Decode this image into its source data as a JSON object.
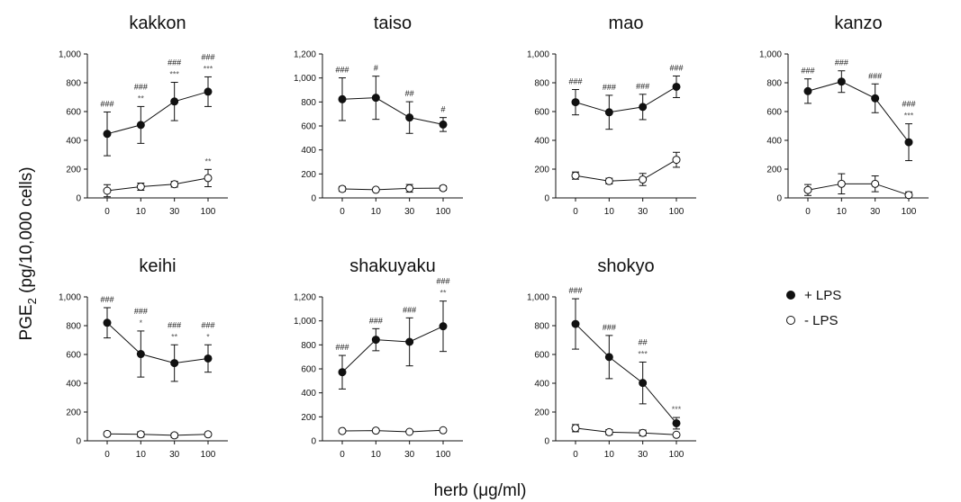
{
  "figure": {
    "ylabel_main": "PGE",
    "ylabel_sub": "2",
    "ylabel_tail": " (pg/10,000 cells)",
    "xlabel": "herb (μg/ml)",
    "legend": {
      "plus": "+ LPS",
      "minus": "- LPS"
    }
  },
  "chart_data": [
    {
      "type": "line",
      "title": "kakkon",
      "categories": [
        "0",
        "10",
        "30",
        "100"
      ],
      "ylim": [
        0,
        1000
      ],
      "yticks": [
        "0",
        "200",
        "400",
        "600",
        "800",
        "1,000"
      ],
      "series": [
        {
          "name": "+ LPS",
          "values": [
            445,
            507,
            670,
            738
          ],
          "errors": [
            152,
            128,
            133,
            103
          ]
        },
        {
          "name": "- LPS",
          "values": [
            50,
            78,
            95,
            138
          ],
          "errors": [
            42,
            25,
            20,
            60
          ]
        }
      ],
      "annotations": [
        {
          "index": 0,
          "lines": [
            {
              "text": "###",
              "color": "#111111"
            }
          ]
        },
        {
          "index": 1,
          "lines": [
            {
              "text": "###",
              "color": "#111111"
            },
            {
              "text": "**",
              "color": "#555555"
            }
          ]
        },
        {
          "index": 2,
          "lines": [
            {
              "text": "###",
              "color": "#111111"
            },
            {
              "text": "***",
              "color": "#555555"
            }
          ]
        },
        {
          "index": 3,
          "lines": [
            {
              "text": "###",
              "color": "#111111"
            },
            {
              "text": "***",
              "color": "#555555"
            }
          ]
        },
        {
          "index": 3,
          "series": 1,
          "lines": [
            {
              "text": "**",
              "color": "#555555"
            }
          ]
        }
      ]
    },
    {
      "type": "line",
      "title": "taiso",
      "categories": [
        "0",
        "10",
        "30",
        "100"
      ],
      "ylim": [
        0,
        1200
      ],
      "yticks": [
        "0",
        "200",
        "400",
        "600",
        "800",
        "1,000",
        "1,200"
      ],
      "series": [
        {
          "name": "+ LPS",
          "values": [
            823,
            835,
            670,
            612
          ],
          "errors": [
            178,
            180,
            132,
            58
          ]
        },
        {
          "name": "- LPS",
          "values": [
            75,
            68,
            80,
            82
          ],
          "errors": [
            20,
            8,
            32,
            18
          ]
        }
      ],
      "annotations": [
        {
          "index": 0,
          "lines": [
            {
              "text": "###",
              "color": "#111111"
            }
          ]
        },
        {
          "index": 1,
          "lines": [
            {
              "text": "#",
              "color": "#111111"
            }
          ]
        },
        {
          "index": 2,
          "lines": [
            {
              "text": "##",
              "color": "#111111"
            }
          ]
        },
        {
          "index": 3,
          "lines": [
            {
              "text": "#",
              "color": "#111111"
            }
          ]
        }
      ]
    },
    {
      "type": "line",
      "title": "mao",
      "categories": [
        "0",
        "10",
        "30",
        "100"
      ],
      "ylim": [
        0,
        1000
      ],
      "yticks": [
        "0",
        "200",
        "400",
        "600",
        "800",
        "1,000"
      ],
      "series": [
        {
          "name": "+ LPS",
          "values": [
            665,
            595,
            632,
            772
          ],
          "errors": [
            88,
            118,
            88,
            75
          ]
        },
        {
          "name": "- LPS",
          "values": [
            155,
            117,
            128,
            265
          ],
          "errors": [
            25,
            20,
            42,
            52
          ]
        }
      ],
      "annotations": [
        {
          "index": 0,
          "lines": [
            {
              "text": "###",
              "color": "#111111"
            }
          ]
        },
        {
          "index": 1,
          "lines": [
            {
              "text": "###",
              "color": "#111111"
            }
          ]
        },
        {
          "index": 2,
          "lines": [
            {
              "text": "###",
              "color": "#111111"
            }
          ]
        },
        {
          "index": 3,
          "lines": [
            {
              "text": "###",
              "color": "#111111"
            }
          ]
        }
      ]
    },
    {
      "type": "line",
      "title": "kanzo",
      "categories": [
        "0",
        "10",
        "30",
        "100"
      ],
      "ylim": [
        0,
        1000
      ],
      "yticks": [
        "0",
        "200",
        "400",
        "600",
        "800",
        "1,000"
      ],
      "series": [
        {
          "name": "+ LPS",
          "values": [
            742,
            808,
            692,
            387
          ],
          "errors": [
            85,
            75,
            100,
            128
          ]
        },
        {
          "name": "- LPS",
          "values": [
            55,
            98,
            98,
            20
          ],
          "errors": [
            38,
            70,
            55,
            22
          ]
        }
      ],
      "annotations": [
        {
          "index": 0,
          "lines": [
            {
              "text": "###",
              "color": "#111111"
            }
          ]
        },
        {
          "index": 1,
          "lines": [
            {
              "text": "###",
              "color": "#111111"
            }
          ]
        },
        {
          "index": 2,
          "lines": [
            {
              "text": "###",
              "color": "#111111"
            }
          ]
        },
        {
          "index": 3,
          "lines": [
            {
              "text": "###",
              "color": "#111111"
            },
            {
              "text": "***",
              "color": "#555555"
            }
          ]
        }
      ]
    },
    {
      "type": "line",
      "title": "keihi",
      "categories": [
        "0",
        "10",
        "30",
        "100"
      ],
      "ylim": [
        0,
        1000
      ],
      "yticks": [
        "0",
        "200",
        "400",
        "600",
        "800",
        "1,000"
      ],
      "series": [
        {
          "name": "+ LPS",
          "values": [
            820,
            603,
            540,
            572
          ],
          "errors": [
            105,
            160,
            127,
            95
          ]
        },
        {
          "name": "- LPS",
          "values": [
            48,
            45,
            38,
            45
          ],
          "errors": [
            12,
            18,
            15,
            10
          ]
        }
      ],
      "annotations": [
        {
          "index": 0,
          "lines": [
            {
              "text": "###",
              "color": "#111111"
            }
          ]
        },
        {
          "index": 1,
          "lines": [
            {
              "text": "###",
              "color": "#111111"
            },
            {
              "text": "*",
              "color": "#555555"
            }
          ]
        },
        {
          "index": 2,
          "lines": [
            {
              "text": "###",
              "color": "#111111"
            },
            {
              "text": "**",
              "color": "#555555"
            }
          ]
        },
        {
          "index": 3,
          "lines": [
            {
              "text": "###",
              "color": "#111111"
            },
            {
              "text": "*",
              "color": "#555555"
            }
          ]
        }
      ]
    },
    {
      "type": "line",
      "title": "shakuyaku",
      "categories": [
        "0",
        "10",
        "30",
        "100"
      ],
      "ylim": [
        0,
        1200
      ],
      "yticks": [
        "0",
        "200",
        "400",
        "600",
        "800",
        "1,000",
        "1,200"
      ],
      "series": [
        {
          "name": "+ LPS",
          "values": [
            572,
            843,
            825,
            955
          ],
          "errors": [
            140,
            92,
            200,
            210
          ]
        },
        {
          "name": "- LPS",
          "values": [
            82,
            85,
            75,
            88
          ],
          "errors": [
            10,
            10,
            8,
            10
          ]
        }
      ],
      "annotations": [
        {
          "index": 0,
          "lines": [
            {
              "text": "###",
              "color": "#111111"
            }
          ]
        },
        {
          "index": 1,
          "lines": [
            {
              "text": "###",
              "color": "#111111"
            }
          ]
        },
        {
          "index": 2,
          "lines": [
            {
              "text": "###",
              "color": "#111111"
            }
          ]
        },
        {
          "index": 3,
          "lines": [
            {
              "text": "###",
              "color": "#111111"
            },
            {
              "text": "**",
              "color": "#555555"
            }
          ]
        }
      ]
    },
    {
      "type": "line",
      "title": "shokyo",
      "categories": [
        "0",
        "10",
        "30",
        "100"
      ],
      "ylim": [
        0,
        1000
      ],
      "yticks": [
        "0",
        "200",
        "400",
        "600",
        "800",
        "1,000"
      ],
      "series": [
        {
          "name": "+ LPS",
          "values": [
            812,
            582,
            402,
            122
          ],
          "errors": [
            175,
            150,
            145,
            40
          ]
        },
        {
          "name": "- LPS",
          "values": [
            88,
            60,
            55,
            42
          ],
          "errors": [
            25,
            18,
            20,
            10
          ]
        }
      ],
      "annotations": [
        {
          "index": 0,
          "lines": [
            {
              "text": "###",
              "color": "#111111"
            }
          ]
        },
        {
          "index": 1,
          "lines": [
            {
              "text": "###",
              "color": "#111111"
            }
          ]
        },
        {
          "index": 2,
          "lines": [
            {
              "text": "##",
              "color": "#111111"
            },
            {
              "text": "***",
              "color": "#555555"
            }
          ]
        },
        {
          "index": 3,
          "lines": [
            {
              "text": "***",
              "color": "#555555"
            }
          ]
        }
      ]
    }
  ]
}
